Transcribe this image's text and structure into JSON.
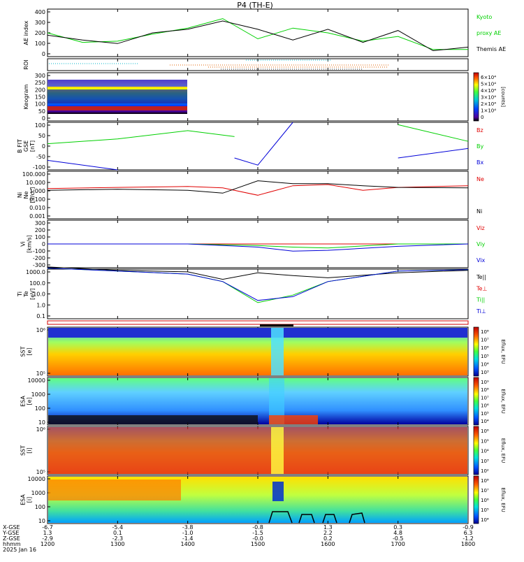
{
  "title": "P4 (TH-E)",
  "date_label": "2025 Jan 16",
  "colors": {
    "black": "#000000",
    "green": "#00d000",
    "red": "#e00000",
    "blue": "#0000d8",
    "cyan": "#00b4c8",
    "orange": "#e06000"
  },
  "panels": [
    {
      "id": "ae",
      "ylabel": [
        "AE index"
      ],
      "right_labels": [
        {
          "text": "Kyoto",
          "color": "#00d000"
        },
        {
          "text": "proxy AE",
          "color": "#00d000"
        },
        {
          "text": "Themis AE",
          "color": "#000000"
        }
      ],
      "yticks": [
        "400",
        "300",
        "200",
        "100",
        "0"
      ]
    },
    {
      "id": "roi",
      "ylabel": [
        "ROI"
      ],
      "right_labels": [],
      "yticks": []
    },
    {
      "id": "keogram",
      "ylabel": [
        "Keogram"
      ],
      "right_labels": [],
      "yticks": [
        "300",
        "250",
        "200",
        "150",
        "100",
        "50",
        "0"
      ],
      "colorbar_ticks": [
        "6×10⁴",
        "5×10⁴",
        "4×10⁴",
        "3×10⁴",
        "2×10⁴",
        "1×10⁴",
        "0"
      ],
      "colorbar_label": "[counts]"
    },
    {
      "id": "bfield",
      "ylabel": [
        "B FIT",
        "GSE",
        "[nT]"
      ],
      "right_labels": [
        {
          "text": "Bz",
          "color": "#e00000"
        },
        {
          "text": "By",
          "color": "#00d000"
        },
        {
          "text": "Bx",
          "color": "#0000d8"
        }
      ],
      "yticks": [
        "100",
        "50",
        "0",
        "-50",
        "-100"
      ]
    },
    {
      "id": "density",
      "ylabel": [
        "Ni",
        "Ne",
        "[1/cc]"
      ],
      "right_labels": [
        {
          "text": "Ne",
          "color": "#e00000"
        },
        {
          "text": "Ni",
          "color": "#000000"
        }
      ],
      "yticks": [
        "100.000",
        "10.000",
        "1.000",
        "0.100",
        "0.010",
        "0.001"
      ]
    },
    {
      "id": "velocity",
      "ylabel": [
        "Vi",
        "[km/s]"
      ],
      "right_labels": [
        {
          "text": "Viz",
          "color": "#e00000"
        },
        {
          "text": "Viy",
          "color": "#00d000"
        },
        {
          "text": "Vix",
          "color": "#0000d8"
        }
      ],
      "yticks": [
        "300",
        "200",
        "100",
        "0",
        "-100",
        "-200",
        "-300"
      ]
    },
    {
      "id": "temperature",
      "ylabel": [
        "Ti",
        "Te",
        "[eV]"
      ],
      "right_labels": [
        {
          "text": "Te||",
          "color": "#000000"
        },
        {
          "text": "Te⊥",
          "color": "#e00000"
        },
        {
          "text": "Ti||",
          "color": "#00d000"
        },
        {
          "text": "Ti⊥",
          "color": "#0000d8"
        }
      ],
      "yticks": [
        "1000.0",
        "100.0",
        "10.0",
        "1.0",
        "0.1"
      ]
    },
    {
      "id": "sst_e",
      "ylabel": [
        "SST",
        "[e]"
      ],
      "right_labels": [],
      "yticks": [
        "10⁶",
        "10⁵"
      ],
      "colorbar_ticks": [
        "10⁸",
        "10⁷",
        "10⁶",
        "10⁵",
        "10⁴",
        "10³"
      ],
      "colorbar_label": "Eflux, EFU"
    },
    {
      "id": "esa_e",
      "ylabel": [
        "ESA",
        "[e]"
      ],
      "right_labels": [],
      "yticks": [
        "10000",
        "1000",
        "100",
        "10"
      ],
      "colorbar_ticks": [
        "10⁹",
        "10⁸",
        "10⁷",
        "10⁶",
        "10⁵",
        "10⁴"
      ],
      "colorbar_label": "Eflux, EFU"
    },
    {
      "id": "sst_i",
      "ylabel": [
        "SST",
        "[i]"
      ],
      "right_labels": [],
      "yticks": [
        "10⁶",
        "10⁵"
      ],
      "colorbar_ticks": [
        "10⁶",
        "10⁵",
        "10⁴",
        "10³",
        "10²"
      ],
      "colorbar_label": "Eflux, EFU"
    },
    {
      "id": "esa_i",
      "ylabel": [
        "ESA",
        "[i]"
      ],
      "right_labels": [],
      "yticks": [
        "10000",
        "1000",
        "100",
        "10"
      ],
      "colorbar_ticks": [
        "10⁸",
        "10⁷",
        "10⁶",
        "10⁵",
        "10⁴"
      ],
      "colorbar_label": "Eflux, EFU"
    }
  ],
  "ephemeris": {
    "row_labels": [
      "X-GSE",
      "Y-GSE",
      "Z-GSE",
      "hhmm",
      "2025 Jan 16"
    ],
    "columns": [
      {
        "x": "-6.7",
        "y": "1.3",
        "z": "-2.9",
        "t": "1200"
      },
      {
        "x": "-5.4",
        "y": "0.1",
        "z": "-2.3",
        "t": "1300"
      },
      {
        "x": "-3.8",
        "y": "-1.0",
        "z": "-1.4",
        "t": "1400"
      },
      {
        "x": "-0.8",
        "y": "-1.5",
        "z": "-0.0",
        "t": "1500"
      },
      {
        "x": "1.3",
        "y": "2.2",
        "z": "0.2",
        "t": "1600"
      },
      {
        "x": "0.3",
        "y": "4.8",
        "z": "-0.5",
        "t": "1700"
      },
      {
        "x": "-0.9",
        "y": "6.3",
        "z": "-1.2",
        "t": "1800"
      }
    ]
  },
  "chart_data": [
    {
      "type": "line",
      "title": "P4 (TH-E)",
      "ylabel": "AE index",
      "ylim": [
        0,
        400
      ],
      "x_unit": "UT hhmm",
      "x": [
        "1200",
        "1230",
        "1300",
        "1330",
        "1400",
        "1430",
        "1500",
        "1530",
        "1600",
        "1630",
        "1700",
        "1730",
        "1800"
      ],
      "series": [
        {
          "name": "Kyoto proxy AE",
          "values": [
            200,
            120,
            130,
            190,
            240,
            320,
            150,
            240,
            200,
            130,
            170,
            60,
            60
          ]
        },
        {
          "name": "Themis AE",
          "values": [
            180,
            140,
            110,
            200,
            230,
            300,
            230,
            140,
            230,
            120,
            220,
            50,
            80
          ]
        }
      ]
    },
    {
      "type": "heatmap",
      "ylabel": "Keogram",
      "ylim": [
        0,
        300
      ],
      "x_range": [
        "1200",
        "1350"
      ],
      "colorbar_label": "[counts]",
      "colorbar_range": [
        0,
        60000
      ]
    },
    {
      "type": "line",
      "ylabel": "B FIT GSE [nT]",
      "ylim": [
        -100,
        100
      ],
      "x": [
        "1200",
        "1300",
        "1400",
        "1440",
        "1500",
        "1530",
        "1600",
        "1630",
        "1700",
        "1800"
      ],
      "series": [
        {
          "name": "By",
          "values": [
            10,
            30,
            65,
            40,
            null,
            null,
            null,
            null,
            90,
            20
          ]
        },
        {
          "name": "Bx",
          "values": [
            -60,
            -100,
            null,
            -50,
            -80,
            100,
            null,
            null,
            -50,
            -10
          ]
        },
        {
          "name": "Bz",
          "values": [
            null,
            null,
            null,
            null,
            null,
            null,
            null,
            null,
            null,
            null
          ]
        }
      ]
    },
    {
      "type": "line",
      "ylabel": "Ni Ne [1/cc]",
      "yscale": "log",
      "ylim": [
        0.001,
        100
      ],
      "x": [
        "1200",
        "1300",
        "1400",
        "1430",
        "1500",
        "1530",
        "1600",
        "1630",
        "1700",
        "1800"
      ],
      "series": [
        {
          "name": "Ne",
          "values": [
            1.5,
            2,
            2.5,
            1.8,
            0.3,
            3,
            4,
            1,
            2,
            3
          ]
        },
        {
          "name": "Ni",
          "values": [
            1,
            1.3,
            1,
            0.5,
            10,
            5,
            5,
            3,
            2,
            1.8
          ]
        }
      ]
    },
    {
      "type": "line",
      "ylabel": "Vi [km/s]",
      "ylim": [
        -300,
        300
      ],
      "x": [
        "1200",
        "1400",
        "1500",
        "1530",
        "1600",
        "1700",
        "1800"
      ],
      "series": [
        {
          "name": "Viz",
          "values": [
            0,
            0,
            0,
            0,
            0,
            0,
            0
          ]
        },
        {
          "name": "Viy",
          "values": [
            0,
            0,
            -20,
            -40,
            -50,
            0,
            0
          ]
        },
        {
          "name": "Vix",
          "values": [
            0,
            0,
            -40,
            -90,
            -80,
            -30,
            0
          ]
        }
      ]
    },
    {
      "type": "line",
      "ylabel": "Ti Te [eV]",
      "yscale": "log",
      "ylim": [
        0.1,
        1000
      ],
      "x": [
        "1200",
        "1300",
        "1400",
        "1430",
        "1500",
        "1530",
        "1600",
        "1700",
        "1800"
      ],
      "series": [
        {
          "name": "Te||",
          "values": [
            1500,
            800,
            600,
            150,
            500,
            300,
            200,
            500,
            800
          ]
        },
        {
          "name": "Ti||",
          "values": [
            1200,
            700,
            400,
            100,
            2,
            8,
            100,
            700,
            900
          ]
        },
        {
          "name": "Ti⊥",
          "values": [
            1200,
            700,
            400,
            100,
            3,
            6,
            100,
            700,
            900
          ]
        }
      ]
    },
    {
      "type": "heatmap",
      "ylabel": "SST [e]",
      "colorbar_label": "Eflux, EFU"
    },
    {
      "type": "heatmap",
      "ylabel": "ESA [e]",
      "ylim": [
        10,
        10000
      ],
      "colorbar_label": "Eflux, EFU"
    },
    {
      "type": "heatmap",
      "ylabel": "SST [i]",
      "colorbar_label": "Eflux, EFU"
    },
    {
      "type": "heatmap",
      "ylabel": "ESA [i]",
      "ylim": [
        10,
        10000
      ],
      "colorbar_label": "Eflux, EFU"
    }
  ]
}
